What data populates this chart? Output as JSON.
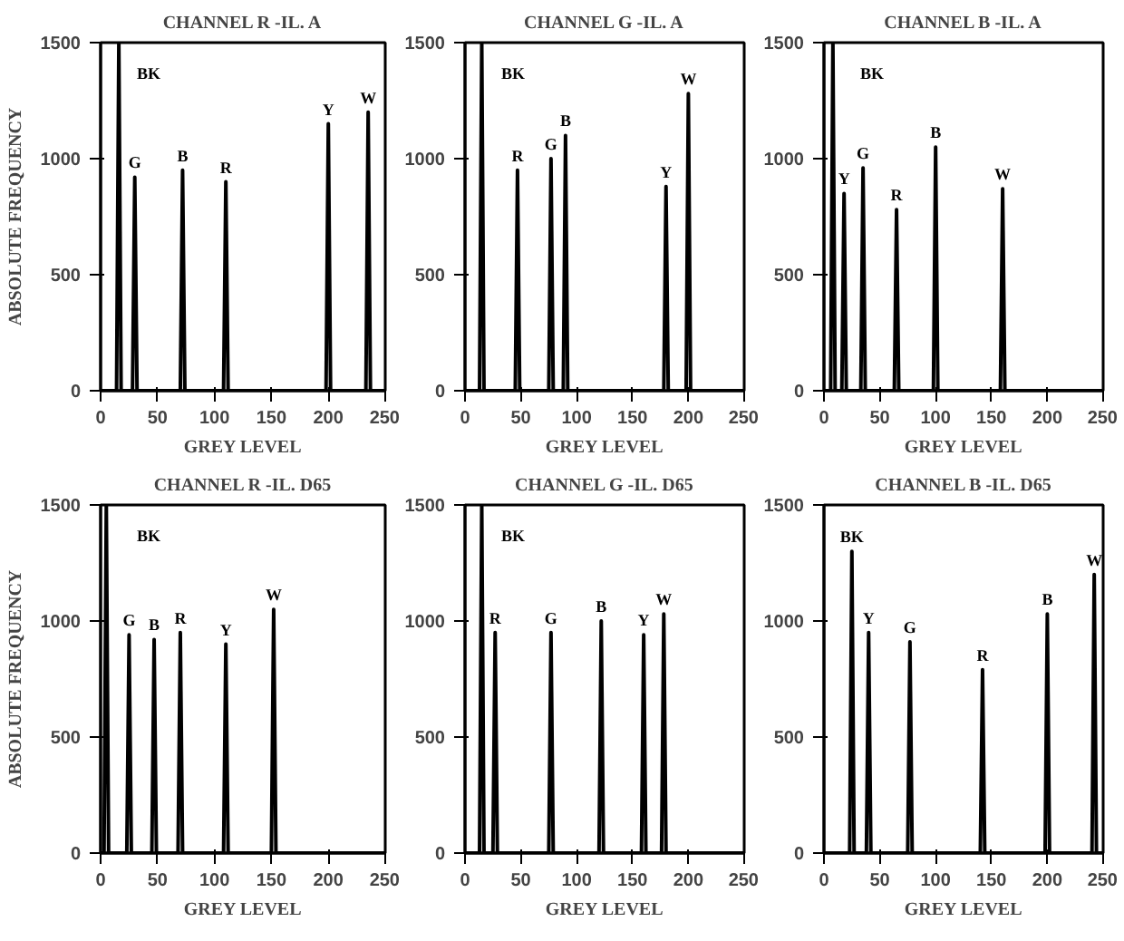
{
  "chart_data": [
    {
      "type": "line",
      "title": "CHANNEL R -IL. A",
      "xlabel": "GREY LEVEL",
      "ylabel": "ABSOLUTE FREQUENCY",
      "x": [
        0,
        14,
        16,
        18,
        28,
        30,
        32,
        70,
        72,
        74,
        108,
        110,
        112,
        198,
        200,
        202,
        233,
        235,
        237,
        250
      ],
      "series": [
        {
          "color": "#000000",
          "values": [
            0,
            0,
            1500,
            0,
            0,
            920,
            0,
            0,
            950,
            0,
            0,
            900,
            0,
            0,
            1150,
            0,
            0,
            1200,
            0,
            0
          ]
        }
      ],
      "xlim": [
        0,
        250
      ],
      "ylim": [
        0,
        1500
      ],
      "xticks": [
        0,
        50,
        100,
        150,
        200,
        250
      ],
      "yticks": [
        0,
        500,
        1000,
        1500
      ],
      "annotations": [
        "BK",
        {
          "text": "G",
          "x": 30,
          "y": 920
        },
        {
          "text": "B",
          "x": 72,
          "y": 950
        },
        {
          "text": "R",
          "x": 110,
          "y": 900
        },
        {
          "text": "Y",
          "x": 200,
          "y": 1150
        },
        {
          "text": "W",
          "x": 235,
          "y": 1200
        }
      ]
    },
    {
      "type": "line",
      "title": "CHANNEL G -IL. A",
      "xlabel": "GREY LEVEL",
      "x": [
        0,
        13,
        15,
        17,
        45,
        47,
        49,
        75,
        77,
        79,
        88,
        90,
        92,
        178,
        180,
        182,
        198,
        200,
        202,
        250
      ],
      "series": [
        {
          "color": "#000000",
          "values": [
            0,
            0,
            1500,
            0,
            0,
            950,
            0,
            0,
            1000,
            0,
            0,
            1100,
            0,
            0,
            880,
            0,
            0,
            1280,
            0,
            0
          ]
        }
      ],
      "xlim": [
        0,
        250
      ],
      "ylim": [
        0,
        1500
      ],
      "xticks": [
        0,
        50,
        100,
        150,
        200,
        250
      ],
      "yticks": [
        0,
        500,
        1000,
        1500
      ],
      "annotations": [
        "BK",
        {
          "text": "R",
          "x": 47,
          "y": 950
        },
        {
          "text": "G",
          "x": 77,
          "y": 1000
        },
        {
          "text": "B",
          "x": 90,
          "y": 1100
        },
        {
          "text": "Y",
          "x": 180,
          "y": 880
        },
        {
          "text": "W",
          "x": 200,
          "y": 1280
        }
      ]
    },
    {
      "type": "line",
      "title": "CHANNEL B -IL. A",
      "xlabel": "GREY LEVEL",
      "x": [
        0,
        6,
        8,
        10,
        16,
        18,
        20,
        33,
        35,
        37,
        63,
        65,
        67,
        98,
        100,
        102,
        158,
        160,
        162,
        250
      ],
      "series": [
        {
          "color": "#000000",
          "values": [
            0,
            0,
            1500,
            0,
            0,
            850,
            0,
            0,
            960,
            0,
            0,
            780,
            0,
            0,
            1050,
            0,
            0,
            870,
            0,
            0
          ]
        }
      ],
      "xlim": [
        0,
        250
      ],
      "ylim": [
        0,
        1500
      ],
      "xticks": [
        0,
        50,
        100,
        150,
        200,
        250
      ],
      "yticks": [
        0,
        500,
        1000,
        1500
      ],
      "annotations": [
        "BK",
        {
          "text": "Y",
          "x": 18,
          "y": 850
        },
        {
          "text": "G",
          "x": 35,
          "y": 960
        },
        {
          "text": "R",
          "x": 65,
          "y": 780
        },
        {
          "text": "B",
          "x": 100,
          "y": 1050
        },
        {
          "text": "W",
          "x": 160,
          "y": 870
        }
      ]
    },
    {
      "type": "line",
      "title": "CHANNEL R -IL. D65",
      "xlabel": "GREY LEVEL",
      "ylabel": "ABSOLUTE FREQUENCY",
      "x": [
        0,
        3,
        5,
        7,
        23,
        25,
        27,
        45,
        47,
        49,
        68,
        70,
        72,
        108,
        110,
        112,
        150,
        152,
        154,
        250
      ],
      "series": [
        {
          "color": "#000000",
          "values": [
            0,
            0,
            1500,
            0,
            0,
            940,
            0,
            0,
            920,
            0,
            0,
            950,
            0,
            0,
            900,
            0,
            0,
            1050,
            0,
            0
          ]
        }
      ],
      "xlim": [
        0,
        250
      ],
      "ylim": [
        0,
        1500
      ],
      "xticks": [
        0,
        50,
        100,
        150,
        200,
        250
      ],
      "yticks": [
        0,
        500,
        1000,
        1500
      ],
      "annotations": [
        "BK",
        {
          "text": "G",
          "x": 25,
          "y": 940
        },
        {
          "text": "B",
          "x": 47,
          "y": 920
        },
        {
          "text": "R",
          "x": 70,
          "y": 950
        },
        {
          "text": "Y",
          "x": 110,
          "y": 900
        },
        {
          "text": "W",
          "x": 152,
          "y": 1050
        }
      ]
    },
    {
      "type": "line",
      "title": "CHANNEL G -IL. D65",
      "xlabel": "GREY LEVEL",
      "x": [
        0,
        13,
        15,
        17,
        25,
        27,
        29,
        75,
        77,
        79,
        120,
        122,
        124,
        158,
        160,
        162,
        176,
        178,
        180,
        250
      ],
      "series": [
        {
          "color": "#000000",
          "values": [
            0,
            0,
            1500,
            0,
            0,
            950,
            0,
            0,
            950,
            0,
            0,
            1000,
            0,
            0,
            940,
            0,
            0,
            1030,
            0,
            0
          ]
        }
      ],
      "xlim": [
        0,
        250
      ],
      "ylim": [
        0,
        1500
      ],
      "xticks": [
        0,
        50,
        100,
        150,
        200,
        250
      ],
      "yticks": [
        0,
        500,
        1000,
        1500
      ],
      "annotations": [
        "BK",
        {
          "text": "R",
          "x": 27,
          "y": 950
        },
        {
          "text": "G",
          "x": 77,
          "y": 950
        },
        {
          "text": "B",
          "x": 122,
          "y": 1000
        },
        {
          "text": "Y",
          "x": 160,
          "y": 940
        },
        {
          "text": "W",
          "x": 178,
          "y": 1030
        }
      ]
    },
    {
      "type": "line",
      "title": "CHANNEL B -IL. D65",
      "xlabel": "GREY LEVEL",
      "x": [
        0,
        23,
        25,
        27,
        38,
        40,
        42,
        75,
        77,
        79,
        140,
        142,
        144,
        198,
        200,
        202,
        240,
        242,
        244,
        250
      ],
      "series": [
        {
          "color": "#000000",
          "values": [
            0,
            0,
            1300,
            0,
            0,
            950,
            0,
            0,
            910,
            0,
            0,
            790,
            0,
            0,
            1030,
            0,
            0,
            1200,
            0,
            0
          ]
        }
      ],
      "xlim": [
        0,
        250
      ],
      "ylim": [
        0,
        1500
      ],
      "xticks": [
        0,
        50,
        100,
        150,
        200,
        250
      ],
      "yticks": [
        0,
        500,
        1000,
        1500
      ],
      "annotations": [
        {
          "text": "BK",
          "x": 25,
          "y": 1300
        },
        {
          "text": "Y",
          "x": 40,
          "y": 950
        },
        {
          "text": "G",
          "x": 77,
          "y": 910
        },
        {
          "text": "R",
          "x": 142,
          "y": 790
        },
        {
          "text": "B",
          "x": 200,
          "y": 1030
        },
        {
          "text": "W",
          "x": 242,
          "y": 1200
        }
      ]
    }
  ]
}
